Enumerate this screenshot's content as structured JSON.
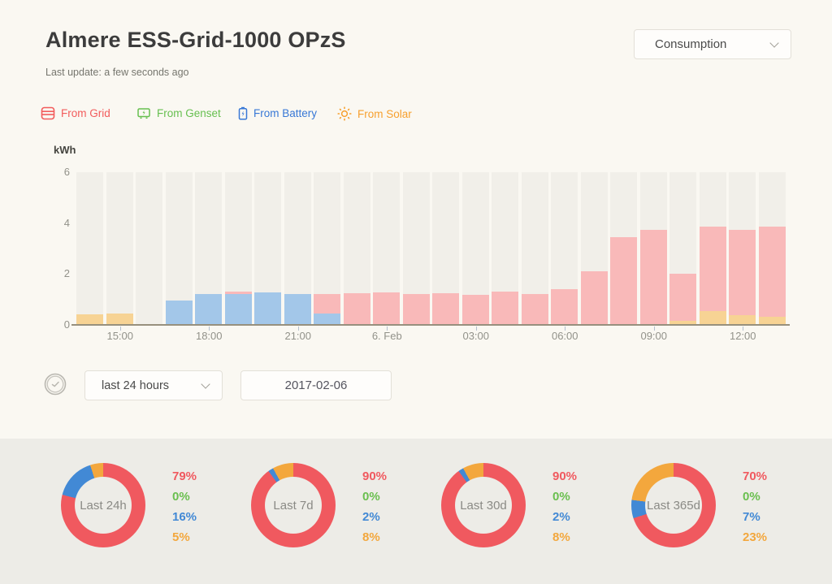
{
  "header": {
    "title": "Almere ESS-Grid-1000 OPzS",
    "last_update": "Last update: a few seconds ago",
    "view_selector": "Consumption"
  },
  "legend": [
    {
      "key": "grid",
      "label": "From Grid",
      "color": "#f25c5c"
    },
    {
      "key": "genset",
      "label": "From Genset",
      "color": "#66bf4f"
    },
    {
      "key": "battery",
      "label": "From Battery",
      "color": "#3878d6"
    },
    {
      "key": "solar",
      "label": "From Solar",
      "color": "#f7a02e"
    }
  ],
  "controls": {
    "range_select": "last 24 hours",
    "date_value": "2017-02-06"
  },
  "chart_data": {
    "type": "bar",
    "stacked": true,
    "ylabel": "kWh",
    "ylim": [
      0,
      6
    ],
    "yticks": [
      0,
      2,
      4,
      6
    ],
    "grid": "column-bands",
    "categories": [
      "14:00",
      "15:00",
      "16:00",
      "17:00",
      "18:00",
      "19:00",
      "20:00",
      "21:00",
      "22:00",
      "23:00",
      "6. Feb",
      "01:00",
      "02:00",
      "03:00",
      "04:00",
      "05:00",
      "06:00",
      "07:00",
      "08:00",
      "09:00",
      "10:00",
      "11:00",
      "12:00",
      "13:00"
    ],
    "x_tick_labels": [
      {
        "index": 1,
        "label": "15:00"
      },
      {
        "index": 4,
        "label": "18:00"
      },
      {
        "index": 7,
        "label": "21:00"
      },
      {
        "index": 10,
        "label": "6. Feb"
      },
      {
        "index": 13,
        "label": "03:00"
      },
      {
        "index": 16,
        "label": "06:00"
      },
      {
        "index": 19,
        "label": "09:00"
      },
      {
        "index": 22,
        "label": "12:00"
      }
    ],
    "series_order": [
      "solar",
      "battery",
      "grid"
    ],
    "bar_colors": {
      "grid": "#f9b9b9",
      "battery": "#a3c7e9",
      "solar": "#f7d394"
    },
    "series": [
      {
        "name": "From Solar",
        "key": "solar",
        "values": [
          0.42,
          0.45,
          0.03,
          0,
          0,
          0,
          0,
          0,
          0,
          0,
          0,
          0,
          0,
          0,
          0,
          0,
          0,
          0,
          0,
          0,
          0.15,
          0.55,
          0.37,
          0.32
        ]
      },
      {
        "name": "From Battery",
        "key": "battery",
        "values": [
          0,
          0,
          0,
          0.97,
          1.22,
          1.2,
          1.27,
          1.22,
          0.45,
          0,
          0,
          0,
          0,
          0,
          0,
          0,
          0,
          0,
          0,
          0,
          0,
          0,
          0,
          0
        ]
      },
      {
        "name": "From Grid",
        "key": "grid",
        "values": [
          0,
          0,
          0,
          0,
          0,
          0.12,
          0,
          0,
          0.75,
          1.25,
          1.28,
          1.22,
          1.23,
          1.19,
          1.3,
          1.22,
          1.4,
          2.1,
          3.45,
          3.75,
          1.85,
          3.3,
          3.38,
          3.55
        ]
      }
    ],
    "donut_order": [
      "grid",
      "genset",
      "battery",
      "solar"
    ],
    "donut_colors": {
      "grid": "#f0595f",
      "genset": "#6abf4f",
      "battery": "#4289d5",
      "solar": "#f3a73d"
    },
    "donuts": [
      {
        "label": "Last 24h",
        "values": {
          "grid": 79,
          "genset": 0,
          "battery": 16,
          "solar": 5
        }
      },
      {
        "label": "Last 7d",
        "values": {
          "grid": 90,
          "genset": 0,
          "battery": 2,
          "solar": 8
        }
      },
      {
        "label": "Last 30d",
        "values": {
          "grid": 90,
          "genset": 0,
          "battery": 2,
          "solar": 8
        }
      },
      {
        "label": "Last 365d",
        "values": {
          "grid": 70,
          "genset": 0,
          "battery": 7,
          "solar": 23
        }
      }
    ]
  }
}
